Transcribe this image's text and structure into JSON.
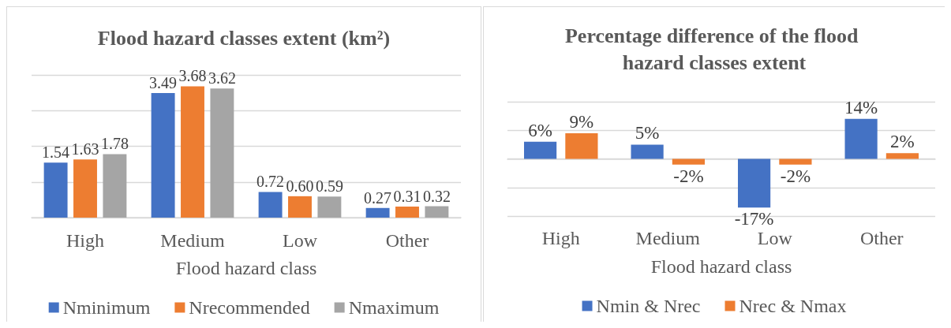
{
  "chart_data": [
    {
      "type": "bar",
      "title": "Flood hazard classes extent (km²)",
      "xlabel": "Flood hazard class",
      "categories": [
        "High",
        "Medium",
        "Low",
        "Other"
      ],
      "series": [
        {
          "name": "Nminimum",
          "color": "#4472c4",
          "values": [
            1.54,
            3.49,
            0.72,
            0.27
          ],
          "value_labels": [
            "1.54",
            "3.49",
            "0.72",
            "0.27"
          ]
        },
        {
          "name": "Nrecommended",
          "color": "#ed7d31",
          "values": [
            1.63,
            3.68,
            0.6,
            0.31
          ],
          "value_labels": [
            "1.63",
            "3.68",
            "0.60",
            "0.31"
          ]
        },
        {
          "name": "Nmaximum",
          "color": "#a5a5a5",
          "values": [
            1.78,
            3.62,
            0.59,
            0.32
          ],
          "value_labels": [
            "1.78",
            "3.62",
            "0.59",
            "0.32"
          ]
        }
      ],
      "ylim": [
        0,
        4
      ],
      "yticks": [
        0,
        1,
        2,
        3,
        4
      ],
      "tick_labels": "x",
      "grid": "y",
      "legend": "bottom"
    },
    {
      "type": "bar",
      "title": "Percentage difference of the flood hazard classes extent",
      "xlabel": "Flood hazard class",
      "categories": [
        "High",
        "Medium",
        "Low",
        "Other"
      ],
      "series": [
        {
          "name": "Nmin & Nrec",
          "color": "#4472c4",
          "values": [
            6,
            5,
            -17,
            14
          ],
          "value_labels": [
            "6%",
            "5%",
            "-17%",
            "14%"
          ]
        },
        {
          "name": "Nrec & Nmax",
          "color": "#ed7d31",
          "values": [
            9,
            -2,
            -2,
            2
          ],
          "value_labels": [
            "9%",
            "-2%",
            "-2%",
            "2%"
          ]
        }
      ],
      "ylim": [
        -20,
        20
      ],
      "yticks": [
        -20,
        -10,
        0,
        10,
        20
      ],
      "tick_labels": "x",
      "grid": "y",
      "legend": "bottom"
    }
  ]
}
